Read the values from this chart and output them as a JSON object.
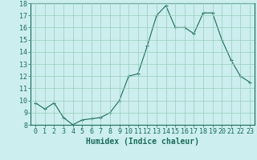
{
  "x": [
    0,
    1,
    2,
    3,
    4,
    5,
    6,
    7,
    8,
    9,
    10,
    11,
    12,
    13,
    14,
    15,
    16,
    17,
    18,
    19,
    20,
    21,
    22,
    23
  ],
  "y": [
    9.8,
    9.3,
    9.8,
    8.6,
    8.0,
    8.4,
    8.5,
    8.6,
    9.0,
    10.0,
    12.0,
    12.2,
    14.5,
    17.0,
    17.8,
    16.0,
    16.0,
    15.5,
    17.2,
    17.2,
    15.0,
    13.3,
    12.0,
    11.5
  ],
  "line_color": "#1a6b5a",
  "marker": "+",
  "marker_size": 3,
  "bg_color": "#cceeee",
  "grid_color": "#99ccbb",
  "xlabel": "Humidex (Indice chaleur)",
  "xlim": [
    -0.5,
    23.5
  ],
  "ylim": [
    8,
    18
  ],
  "yticks": [
    8,
    9,
    10,
    11,
    12,
    13,
    14,
    15,
    16,
    17,
    18
  ],
  "xticks": [
    0,
    1,
    2,
    3,
    4,
    5,
    6,
    7,
    8,
    9,
    10,
    11,
    12,
    13,
    14,
    15,
    16,
    17,
    18,
    19,
    20,
    21,
    22,
    23
  ],
  "figsize": [
    3.2,
    2.0
  ],
  "dpi": 100,
  "xlabel_fontsize": 7,
  "tick_fontsize": 6
}
